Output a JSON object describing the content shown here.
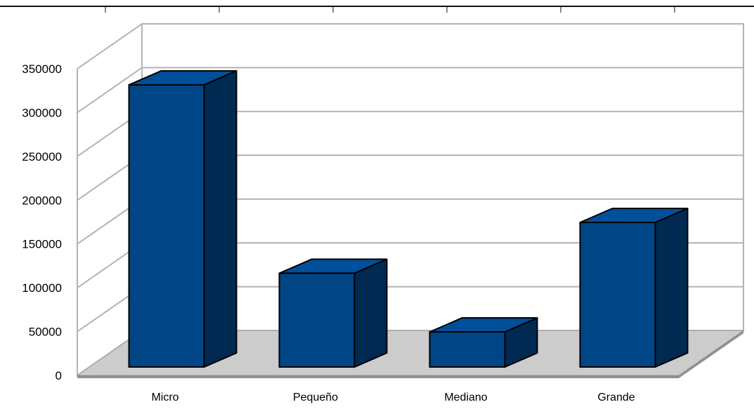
{
  "chart_data": {
    "type": "bar",
    "view": "3d",
    "categories": [
      "Micro",
      "Pequeño",
      "Mediano",
      "Grande"
    ],
    "values": [
      322000,
      107000,
      40000,
      165000
    ],
    "ylim": [
      0,
      350000
    ],
    "yticks": [
      0,
      50000,
      100000,
      150000,
      200000,
      250000,
      300000,
      350000
    ],
    "ytick_labels": [
      "0",
      "50000",
      "100000",
      "150000",
      "200000",
      "250000",
      "300000",
      "350000"
    ],
    "grid": true,
    "legend": "none",
    "colors": {
      "bar_front": "#004586",
      "bar_side": "#002a51",
      "bar_top": "#004f9a",
      "floor": "#cccccc",
      "gridline": "#b3b3b3",
      "outline": "#000000"
    }
  }
}
